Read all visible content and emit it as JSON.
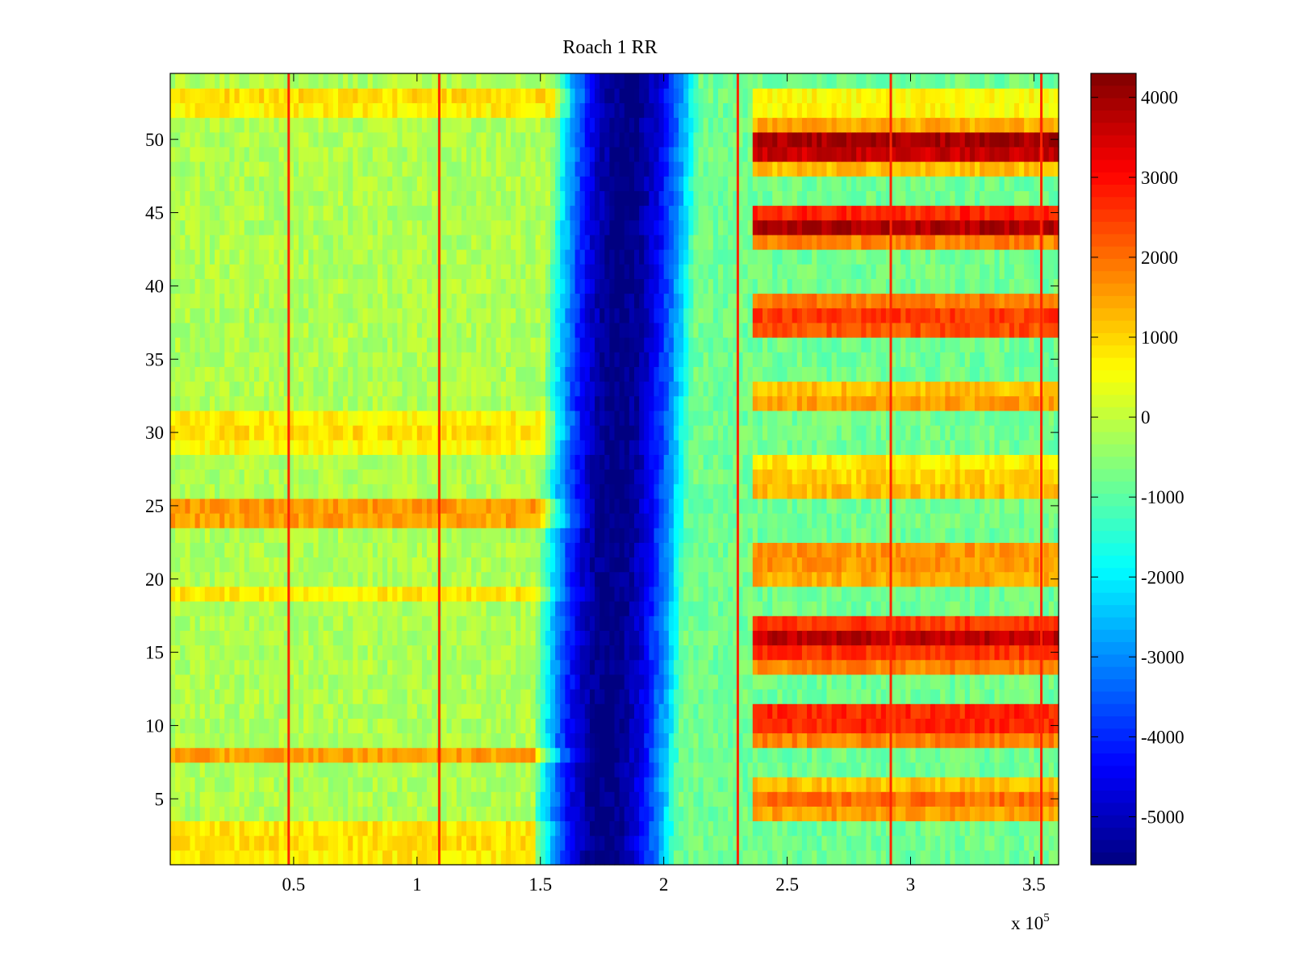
{
  "chart_data": {
    "type": "heatmap",
    "title": "Roach 1 RR",
    "xlabel": "",
    "ylabel": "",
    "x_exponent_label": "x 10",
    "x_exponent_power": "5",
    "xlim": [
      0,
      3.6
    ],
    "ylim": [
      0.5,
      54.5
    ],
    "x_ticks": [
      0.5,
      1,
      1.5,
      2,
      2.5,
      3,
      3.5
    ],
    "x_tick_labels": [
      "0.5",
      "1",
      "1.5",
      "2",
      "2.5",
      "3",
      "3.5"
    ],
    "y_ticks": [
      5,
      10,
      15,
      20,
      25,
      30,
      35,
      40,
      45,
      50
    ],
    "y_tick_labels": [
      "5",
      "10",
      "15",
      "20",
      "25",
      "30",
      "35",
      "40",
      "45",
      "50"
    ],
    "colormap": "jet",
    "clim": [
      -5600,
      4300
    ],
    "colorbar_ticks": [
      4000,
      3000,
      2000,
      1000,
      0,
      -1000,
      -2000,
      -3000,
      -4000,
      -5000
    ],
    "colorbar_tick_labels": [
      "4000",
      "3000",
      "2000",
      "1000",
      "0",
      "-1000",
      "-2000",
      "-3000",
      "-4000",
      "-5000"
    ],
    "rows": 54,
    "pre_dip_row_levels": {
      "1": 800,
      "2": 900,
      "3": 800,
      "8": 1500,
      "19": 800,
      "24": 1500,
      "25": 1600,
      "29": 600,
      "30": 900,
      "31": 700,
      "52": 700,
      "53": 900
    },
    "post_dip_row_levels": {
      "4": 1500,
      "5": 2000,
      "6": 1200,
      "9": 1800,
      "10": 2700,
      "11": 2700,
      "14": 1800,
      "15": 2600,
      "16": 3700,
      "17": 2500,
      "20": 1400,
      "21": 1600,
      "22": 1600,
      "26": 1200,
      "27": 1000,
      "28": 800,
      "32": 1500,
      "33": 1200,
      "37": 2300,
      "38": 2500,
      "39": 1900,
      "43": 1800,
      "44": 3800,
      "45": 2700,
      "48": 1200,
      "49": 3600,
      "50": 3900,
      "51": 1400,
      "52": 600,
      "53": 600
    },
    "pre_dip_baseline": -200,
    "post_dip_baseline": -800,
    "dip_level": -5600,
    "dip_center_x": [
      1.75,
      1.85
    ],
    "vertical_spike_x": [
      0.48,
      1.09,
      2.3,
      2.92,
      3.53
    ],
    "vertical_spike_level": 2700
  }
}
